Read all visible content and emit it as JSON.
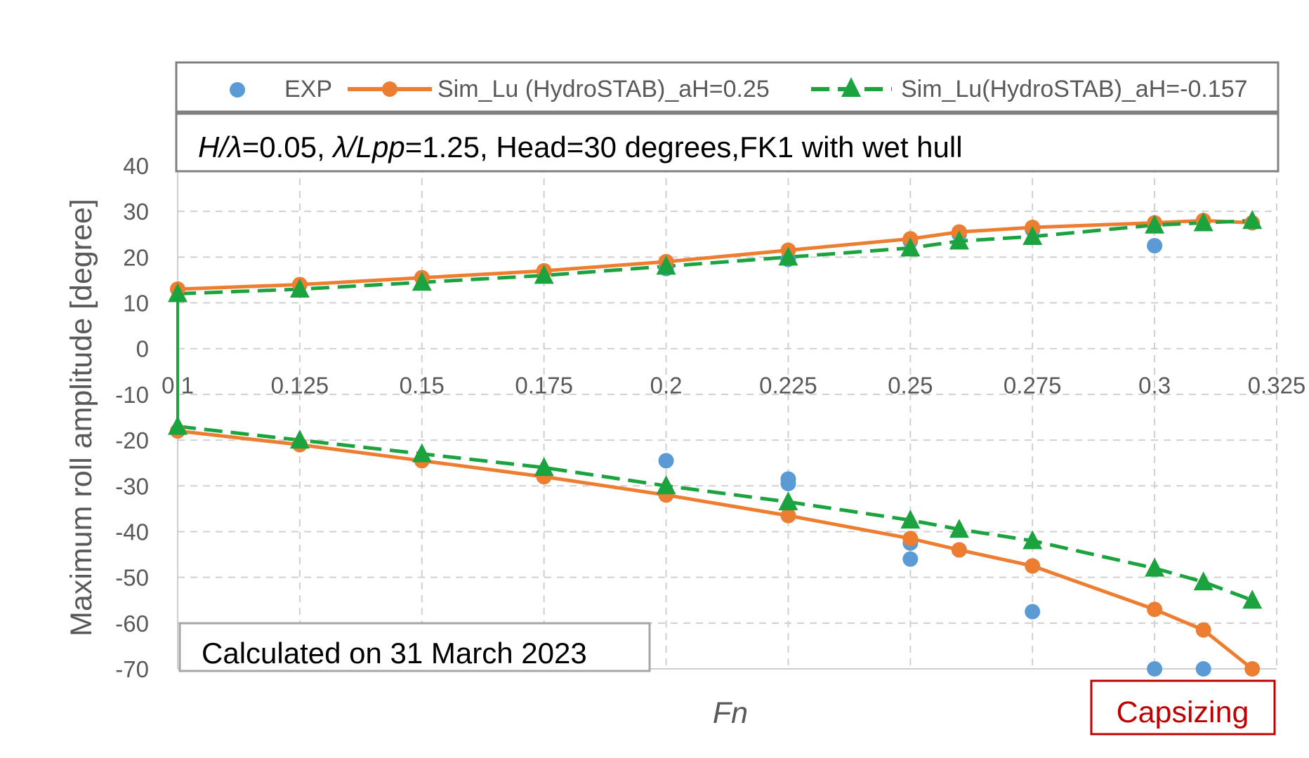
{
  "chart_data": {
    "type": "line",
    "xlabel": "Fn",
    "ylabel": "Maximum roll amplitude [degree]",
    "xlim": [
      0.1,
      0.325
    ],
    "ylim": [
      -70,
      40
    ],
    "xticks": [
      0.1,
      0.125,
      0.15,
      0.175,
      0.2,
      0.225,
      0.25,
      0.275,
      0.3,
      0.325
    ],
    "xtick_labels": [
      "0.1",
      "0.125",
      "0.15",
      "0.175",
      "0.2",
      "0.225",
      "0.25",
      "0.275",
      "0.3",
      "0.325"
    ],
    "yticks": [
      40,
      30,
      20,
      10,
      0,
      -10,
      -20,
      -30,
      -40,
      -50,
      -60,
      -70
    ],
    "ytick_labels": [
      "40",
      "30",
      "20",
      "10",
      "0",
      "-10",
      "-20",
      "-30",
      "-40",
      "-50",
      "-60",
      "-70"
    ],
    "grid": true,
    "legend_position": "top",
    "condition_text": {
      "h": "H",
      "sep1": "/",
      "lambda1": "λ",
      "val1": "=0.05, ",
      "lambda2": "λ",
      "sep2": "/",
      "lpp": "Lpp",
      "rest": "=1.25, Head=30 degrees,FK1 with wet hull"
    },
    "note": "Calculated on 31 March  2023",
    "capsizing_label": "Capsizing",
    "colors": {
      "exp": "#5b9bd5",
      "sim_a": "#ed7d31",
      "sim_b": "#1aa33e",
      "grid": "#d0d0d0",
      "capsizing": "#c00000"
    },
    "series": [
      {
        "name": "EXP",
        "kind": "scatter",
        "points": [
          [
            0.2,
            17.5
          ],
          [
            0.225,
            19.5
          ],
          [
            0.25,
            23.5
          ],
          [
            0.26,
            25
          ],
          [
            0.275,
            26
          ],
          [
            0.3,
            22.5
          ],
          [
            0.2,
            -24.5
          ],
          [
            0.225,
            -28.5
          ],
          [
            0.225,
            -29.5
          ],
          [
            0.25,
            -42.5
          ],
          [
            0.25,
            -46
          ],
          [
            0.26,
            -44
          ],
          [
            0.275,
            -57.5
          ],
          [
            0.3,
            -70
          ],
          [
            0.31,
            -70
          ]
        ]
      },
      {
        "name": "Sim_Lu (HydroSTAB)_aH=0.25",
        "kind": "line-circle",
        "upper": [
          [
            0.1,
            13
          ],
          [
            0.125,
            14
          ],
          [
            0.15,
            15.5
          ],
          [
            0.175,
            17
          ],
          [
            0.2,
            19
          ],
          [
            0.225,
            21.5
          ],
          [
            0.25,
            24
          ],
          [
            0.26,
            25.5
          ],
          [
            0.275,
            26.5
          ],
          [
            0.3,
            27.5
          ],
          [
            0.31,
            28
          ],
          [
            0.32,
            27.5
          ]
        ],
        "lower": [
          [
            0.1,
            -18
          ],
          [
            0.125,
            -21
          ],
          [
            0.15,
            -24.5
          ],
          [
            0.175,
            -28
          ],
          [
            0.2,
            -32
          ],
          [
            0.225,
            -36.5
          ],
          [
            0.25,
            -41.5
          ],
          [
            0.26,
            -44
          ],
          [
            0.275,
            -47.5
          ],
          [
            0.3,
            -57
          ],
          [
            0.31,
            -61.5
          ],
          [
            0.32,
            -70
          ]
        ]
      },
      {
        "name": "Sim_Lu(HydroSTAB)_aH=-0.157",
        "kind": "dashed-triangle",
        "upper": [
          [
            0.1,
            12
          ],
          [
            0.125,
            13
          ],
          [
            0.15,
            14.5
          ],
          [
            0.175,
            16
          ],
          [
            0.2,
            18
          ],
          [
            0.225,
            20
          ],
          [
            0.25,
            22
          ],
          [
            0.26,
            23.5
          ],
          [
            0.275,
            24.5
          ],
          [
            0.3,
            27
          ],
          [
            0.31,
            27.5
          ],
          [
            0.32,
            28
          ]
        ],
        "lower": [
          [
            0.1,
            -17
          ],
          [
            0.125,
            -20
          ],
          [
            0.15,
            -23
          ],
          [
            0.175,
            -26
          ],
          [
            0.2,
            -30
          ],
          [
            0.225,
            -33.5
          ],
          [
            0.25,
            -37.5
          ],
          [
            0.26,
            -39.5
          ],
          [
            0.275,
            -42
          ],
          [
            0.3,
            -48
          ],
          [
            0.31,
            -51
          ],
          [
            0.32,
            -55
          ]
        ]
      }
    ]
  }
}
